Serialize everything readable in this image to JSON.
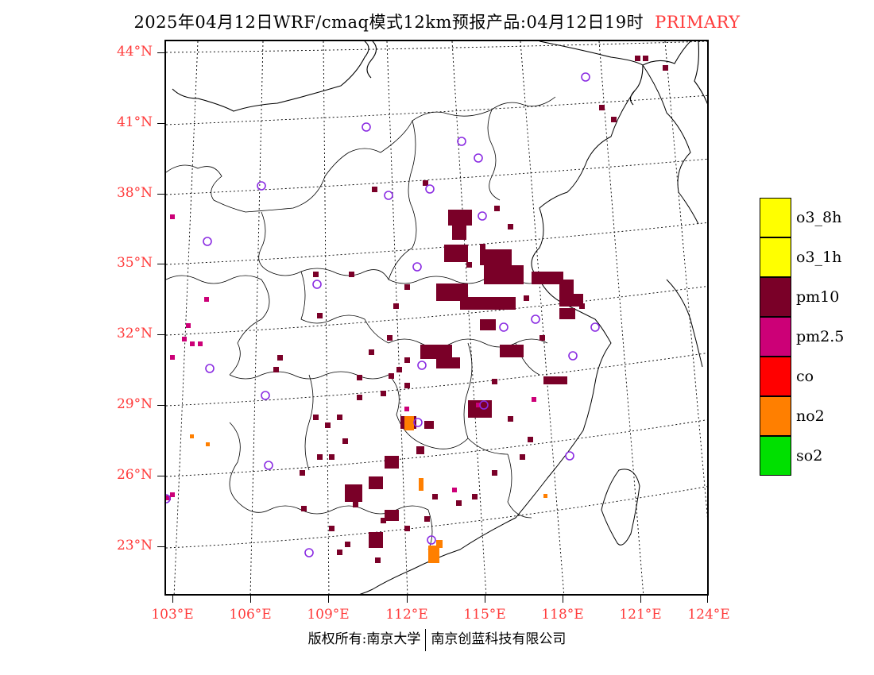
{
  "header": {
    "title": "2025年04月12日WRF/cmaq模式12km预报产品:04月12日19时",
    "tag": "PRIMARY"
  },
  "map": {
    "lat_labels": [
      "44°N",
      "41°N",
      "38°N",
      "35°N",
      "32°N",
      "29°N",
      "26°N",
      "23°N"
    ],
    "lon_labels": [
      "103°E",
      "106°E",
      "109°E",
      "112°E",
      "115°E",
      "118°E",
      "121°E",
      "124°E"
    ],
    "colors": {
      "pm10": "#7a0028",
      "pm25": "#cc0077",
      "co": "#ff0000",
      "no2": "#ff7f00",
      "station_marker": "#8a2be2",
      "label_red": "#ff3b3b"
    }
  },
  "legend": {
    "items": [
      {
        "label": "o3_8h",
        "color": "#ffff00"
      },
      {
        "label": "o3_1h",
        "color": "#ffff00"
      },
      {
        "label": "pm10",
        "color": "#7a0028"
      },
      {
        "label": "pm2.5",
        "color": "#cc0077"
      },
      {
        "label": "co",
        "color": "#ff0000"
      },
      {
        "label": "no2",
        "color": "#ff7f00"
      },
      {
        "label": "so2",
        "color": "#00e000"
      }
    ]
  },
  "footer": {
    "left": "版权所有:南京大学",
    "right": "南京创蓝科技有限公司"
  }
}
